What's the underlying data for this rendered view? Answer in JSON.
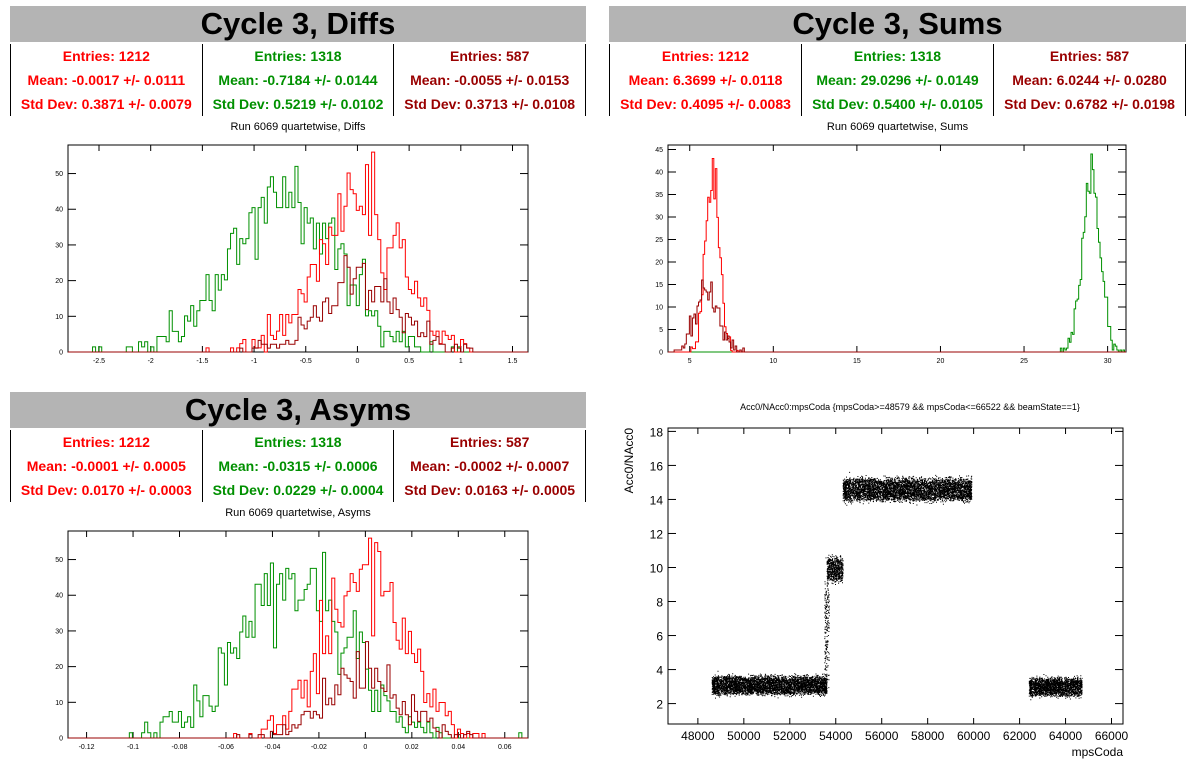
{
  "colors": {
    "red": "#ff0000",
    "green": "#009000",
    "darkred": "#990000",
    "title_bg": "#b4b4b4"
  },
  "panels": {
    "diffs": {
      "title": "Cycle 3, Diffs",
      "hist_title": "Run 6069 quartetwise, Diffs",
      "stats": [
        {
          "entries": "Entries: 1212",
          "mean": "Mean: -0.0017 +/- 0.0111",
          "std": "Std Dev: 0.3871 +/- 0.0079"
        },
        {
          "entries": "Entries: 1318",
          "mean": "Mean: -0.7184 +/- 0.0144",
          "std": "Std Dev: 0.5219 +/- 0.0102"
        },
        {
          "entries": "Entries: 587",
          "mean": "Mean: -0.0055 +/- 0.0153",
          "std": "Std Dev: 0.3713 +/- 0.0108"
        }
      ]
    },
    "sums": {
      "title": "Cycle 3, Sums",
      "hist_title": "Run 6069 quartetwise, Sums",
      "stats": [
        {
          "entries": "Entries: 1212",
          "mean": "Mean: 6.3699 +/- 0.0118",
          "std": "Std Dev: 0.4095 +/- 0.0083"
        },
        {
          "entries": "Entries: 1318",
          "mean": "Mean: 29.0296 +/- 0.0149",
          "std": "Std Dev: 0.5400 +/- 0.0105"
        },
        {
          "entries": "Entries: 587",
          "mean": "Mean: 6.0244 +/- 0.0280",
          "std": "Std Dev: 0.6782 +/- 0.0198"
        }
      ]
    },
    "asyms": {
      "title": "Cycle 3, Asyms",
      "hist_title": "Run 6069 quartetwise, Asyms",
      "stats": [
        {
          "entries": "Entries: 1212",
          "mean": "Mean: -0.0001 +/- 0.0005",
          "std": "Std Dev: 0.0170 +/- 0.0003"
        },
        {
          "entries": "Entries: 1318",
          "mean": "Mean: -0.0315 +/- 0.0006",
          "std": "Std Dev: 0.0229 +/- 0.0004"
        },
        {
          "entries": "Entries: 587",
          "mean": "Mean: -0.0002 +/- 0.0007",
          "std": "Std Dev: 0.0163 +/- 0.0005"
        }
      ]
    },
    "scatter": {
      "title": "Acc0/NAcc0:mpsCoda {mpsCoda>=48579 && mpsCoda<=66522 && beamState==1}"
    }
  },
  "chart_data": [
    {
      "type": "histogram",
      "title": "Run 6069 quartetwise, Diffs",
      "xlim": [
        -2.8,
        1.65
      ],
      "ylim": [
        0,
        58
      ],
      "xticks": [
        "-2.5",
        "-2",
        "-1.5",
        "-1",
        "-0.5",
        "0",
        "0.5",
        "1",
        "1.5"
      ],
      "yticks": [
        "0",
        "10",
        "20",
        "30",
        "40",
        "50"
      ],
      "series": [
        {
          "color": "#009000",
          "mean": -0.7184,
          "std": 0.5219,
          "entries": 1318,
          "peak": 52
        },
        {
          "color": "#ff0000",
          "mean": -0.0017,
          "std": 0.3871,
          "entries": 1212,
          "peak": 56
        },
        {
          "color": "#990000",
          "mean": -0.0055,
          "std": 0.3713,
          "entries": 587,
          "peak": 27
        }
      ]
    },
    {
      "type": "histogram",
      "title": "Run 6069 quartetwise, Sums",
      "xlim": [
        3.7,
        31.1
      ],
      "ylim": [
        0,
        46
      ],
      "xticks": [
        "5",
        "10",
        "15",
        "20",
        "25",
        "30"
      ],
      "yticks": [
        "0",
        "5",
        "10",
        "15",
        "20",
        "25",
        "30",
        "35",
        "40",
        "45"
      ],
      "series": [
        {
          "color": "#009000",
          "mean": 29.0296,
          "std": 0.54,
          "entries": 1318,
          "peak": 44
        },
        {
          "color": "#ff0000",
          "mean": 6.3699,
          "std": 0.4095,
          "entries": 1212,
          "peak": 43
        },
        {
          "color": "#990000",
          "mean": 6.0244,
          "std": 0.6782,
          "entries": 587,
          "peak": 16
        }
      ]
    },
    {
      "type": "histogram",
      "title": "Run 6069 quartetwise, Asyms",
      "xlim": [
        -0.128,
        0.07
      ],
      "ylim": [
        0,
        58
      ],
      "xticks": [
        "-0.12",
        "-0.1",
        "-0.08",
        "-0.06",
        "-0.04",
        "-0.02",
        "0",
        "0.02",
        "0.04",
        "0.06"
      ],
      "yticks": [
        "0",
        "10",
        "20",
        "30",
        "40",
        "50"
      ],
      "series": [
        {
          "color": "#009000",
          "mean": -0.0315,
          "std": 0.0229,
          "entries": 1318,
          "peak": 52
        },
        {
          "color": "#ff0000",
          "mean": -0.0001,
          "std": 0.017,
          "entries": 1212,
          "peak": 56
        },
        {
          "color": "#990000",
          "mean": -0.0002,
          "std": 0.0163,
          "entries": 587,
          "peak": 27
        }
      ]
    },
    {
      "type": "scatter",
      "title": "Acc0/NAcc0:mpsCoda {mpsCoda>=48579 && mpsCoda<=66522 && beamState==1}",
      "xlabel": "mpsCoda",
      "ylabel": "Acc0/NAcc0",
      "xlim": [
        46700,
        66500
      ],
      "ylim": [
        0.8,
        18.2
      ],
      "xticks": [
        "48000",
        "50000",
        "52000",
        "54000",
        "56000",
        "58000",
        "60000",
        "62000",
        "64000",
        "66000"
      ],
      "yticks": [
        "2",
        "4",
        "6",
        "8",
        "10",
        "12",
        "14",
        "16",
        "18"
      ],
      "clusters": [
        {
          "x": [
            48600,
            53600
          ],
          "y": 3.1,
          "spread": 0.45
        },
        {
          "x": [
            53600,
            54300
          ],
          "y": 9.9,
          "spread": 0.6
        },
        {
          "x": [
            53500,
            53700
          ],
          "y": 6.5,
          "spread": 2.5
        },
        {
          "x": [
            54300,
            59900
          ],
          "y": 14.6,
          "spread": 0.55
        },
        {
          "x": [
            62400,
            64700
          ],
          "y": 3.0,
          "spread": 0.45
        }
      ]
    }
  ]
}
